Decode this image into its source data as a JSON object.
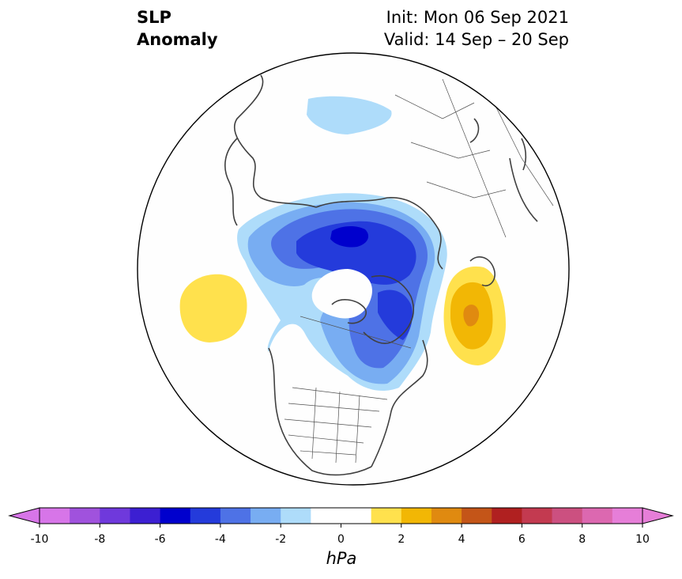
{
  "header": {
    "title_line1": "SLP",
    "title_line2": "Anomaly",
    "init": "Init: Mon 06 Sep 2021",
    "valid": "Valid: 14 Sep – 20 Sep"
  },
  "colorbar": {
    "min": -10,
    "max": 10,
    "step": 1,
    "ticks": [
      "-10",
      "-8",
      "-6",
      "-4",
      "-2",
      "0",
      "2",
      "4",
      "6",
      "8",
      "10"
    ],
    "unit": "hPa",
    "colors": [
      "#d775e8",
      "#a052dd",
      "#6f39dc",
      "#3c1fd2",
      "#0000cd",
      "#243bdb",
      "#4e72e6",
      "#78adf2",
      "#aedcfa",
      "#ffffff",
      "#ffffff",
      "#ffe14d",
      "#f2b705",
      "#e08a10",
      "#c45518",
      "#b02020",
      "#c33a50",
      "#cc5080",
      "#dc68b0",
      "#e67ed8"
    ]
  },
  "map": {
    "projection": "north-polar-stereographic",
    "features": [
      {
        "name": "negative-anomaly-eurasian-arctic",
        "min_value": -7,
        "color": "#0000cd"
      },
      {
        "name": "negative-anomaly-siberia",
        "min_value": -2,
        "color": "#aedcfa"
      },
      {
        "name": "positive-anomaly-north-pacific",
        "max_value": 2,
        "color": "#ffe14d"
      },
      {
        "name": "positive-anomaly-north-atlantic",
        "max_value": 4,
        "color": "#e08a10"
      }
    ]
  }
}
